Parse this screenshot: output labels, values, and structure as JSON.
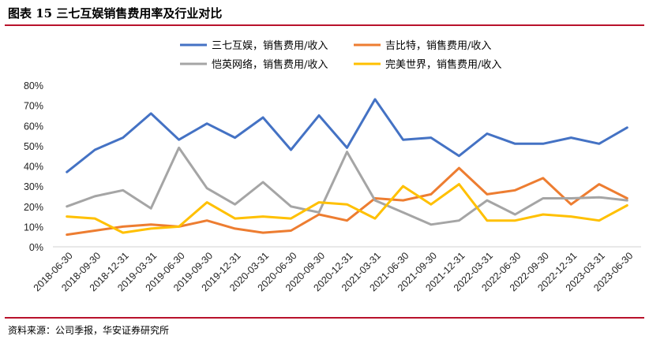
{
  "header": {
    "title": "图表 15 三七互娱销售费用率及行业对比"
  },
  "footer": {
    "source": "资料来源：公司季报，华安证券研究所"
  },
  "colors": {
    "accent": "#b8122b",
    "axis": "#d0d0d0"
  },
  "chart_data": {
    "type": "line",
    "title": "三七互娱销售费用率及行业对比",
    "xlabel": "",
    "ylabel": "",
    "ylim": [
      0,
      80
    ],
    "yticks": [
      "0%",
      "10%",
      "20%",
      "30%",
      "40%",
      "50%",
      "60%",
      "70%",
      "80%"
    ],
    "grid": false,
    "legend_position": "top",
    "categories": [
      "2018-06-30",
      "2018-09-30",
      "2018-12-31",
      "2019-03-31",
      "2019-06-30",
      "2019-09-30",
      "2019-12-31",
      "2020-03-31",
      "2020-06-30",
      "2020-09-30",
      "2020-12-31",
      "2021-03-31",
      "2021-06-30",
      "2021-09-30",
      "2021-12-31",
      "2022-03-31",
      "2022-06-30",
      "2022-09-30",
      "2022-12-31",
      "2023-03-31",
      "2023-06-30"
    ],
    "series": [
      {
        "name": "三七互娱，销售费用/收入",
        "color": "#4472c4",
        "values": [
          37,
          48,
          54,
          66,
          53,
          61,
          54,
          64,
          48,
          65,
          49,
          73,
          53,
          54,
          45,
          56,
          51,
          51,
          54,
          51,
          59
        ]
      },
      {
        "name": "吉比特，销售费用/收入",
        "color": "#ed7d31",
        "values": [
          6,
          8,
          10,
          11,
          10,
          13,
          9,
          7,
          8,
          16,
          13,
          24,
          23,
          26,
          39,
          26,
          28,
          34,
          21,
          31,
          24
        ]
      },
      {
        "name": "恺英网络，销售费用/收入",
        "color": "#a5a5a5",
        "values": [
          20,
          25,
          28,
          19,
          49,
          29,
          21,
          32,
          20,
          17,
          47,
          23,
          17,
          11,
          13,
          23,
          16,
          24,
          24,
          24.5,
          23
        ]
      },
      {
        "name": "完美世界，销售费用/收入",
        "color": "#ffc000",
        "values": [
          15,
          14,
          7,
          9,
          10,
          22,
          14,
          15,
          14,
          22,
          21,
          14,
          30,
          21,
          31,
          13,
          13,
          16,
          15,
          13,
          20.5
        ]
      }
    ]
  }
}
